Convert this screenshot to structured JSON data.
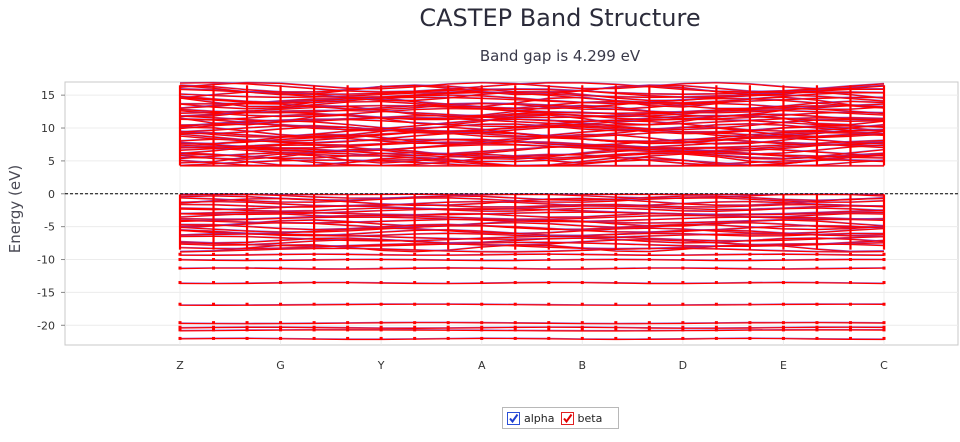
{
  "chart_data": {
    "type": "line",
    "title": "CASTEP Band Structure",
    "subtitle": "Band gap is 4.299 eV",
    "ylabel": "Energy (eV)",
    "xlabel": "",
    "ylim": [
      -23,
      17
    ],
    "yticks": [
      15,
      10,
      5,
      0,
      -5,
      -10,
      -15,
      -20
    ],
    "fermi_level": 0,
    "kpoints": [
      {
        "label": "Z",
        "x": 0
      },
      {
        "label": "G",
        "x": 1
      },
      {
        "label": "Y",
        "x": 2
      },
      {
        "label": "A",
        "x": 3
      },
      {
        "label": "B",
        "x": 4
      },
      {
        "label": "D",
        "x": 5
      },
      {
        "label": "E",
        "x": 6
      },
      {
        "label": "C",
        "x": 7
      }
    ],
    "band_gap_eV": 4.299,
    "valence_band_max_eV": 0.0,
    "conduction_band_min_eV": 4.3,
    "bands": {
      "conduction_range_eV": [
        4.3,
        16.5
      ],
      "valence_range_eV": [
        -8.5,
        0
      ],
      "deep_levels_eV": [
        -9.2,
        -10.0,
        -11.3,
        -13.5,
        -16.8,
        -19.6,
        -20.3,
        -20.7,
        -22.0
      ]
    },
    "series": [
      {
        "name": "alpha",
        "color": "#7a2fbf",
        "checked": true
      },
      {
        "name": "beta",
        "color": "#ff0000",
        "checked": true
      }
    ],
    "legend_position": "bottom-center",
    "grid": true
  }
}
